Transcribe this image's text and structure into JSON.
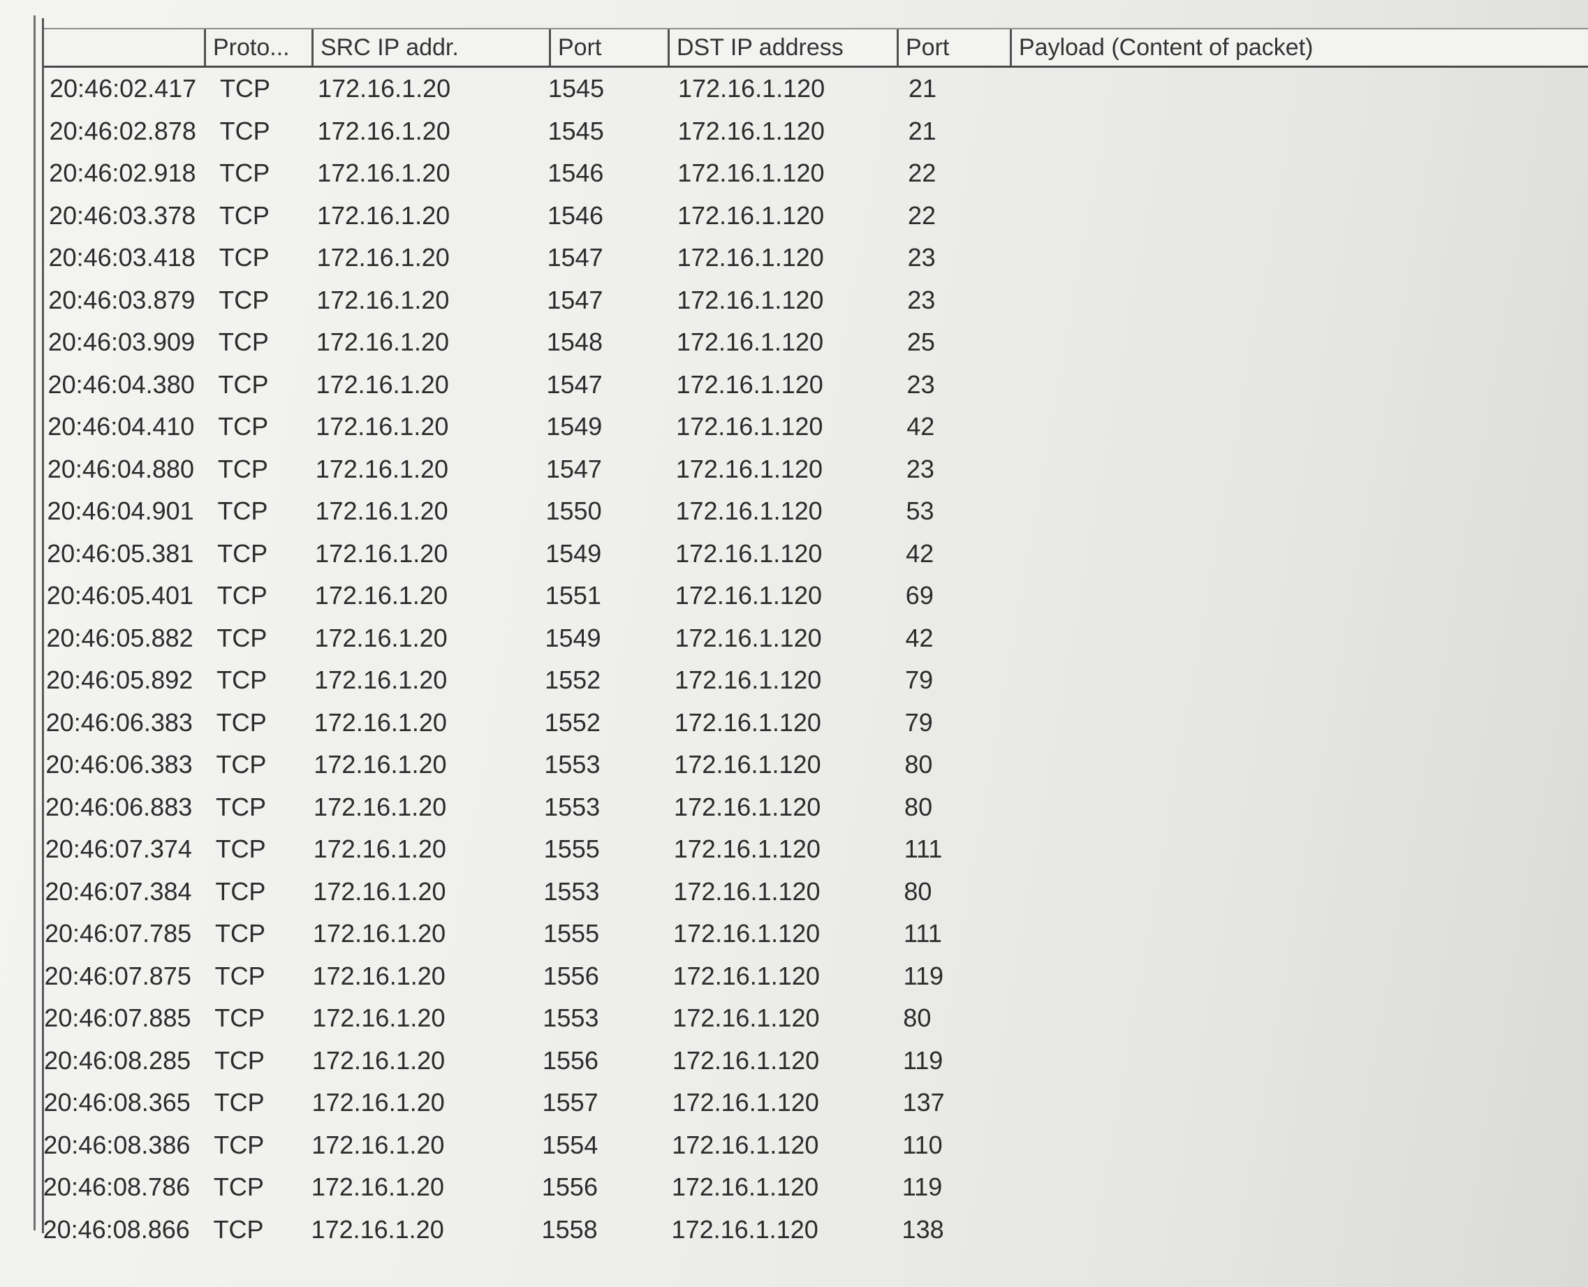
{
  "columns": [
    "",
    "Proto...",
    "SRC IP addr.",
    "Port",
    "DST IP address",
    "Port",
    "Payload (Content of packet)"
  ],
  "rows": [
    [
      "20:46:02.417",
      "TCP",
      "172.16.1.20",
      "1545",
      "172.16.1.120",
      "21",
      ""
    ],
    [
      "20:46:02.878",
      "TCP",
      "172.16.1.20",
      "1545",
      "172.16.1.120",
      "21",
      ""
    ],
    [
      "20:46:02.918",
      "TCP",
      "172.16.1.20",
      "1546",
      "172.16.1.120",
      "22",
      ""
    ],
    [
      "20:46:03.378",
      "TCP",
      "172.16.1.20",
      "1546",
      "172.16.1.120",
      "22",
      ""
    ],
    [
      "20:46:03.418",
      "TCP",
      "172.16.1.20",
      "1547",
      "172.16.1.120",
      "23",
      ""
    ],
    [
      "20:46:03.879",
      "TCP",
      "172.16.1.20",
      "1547",
      "172.16.1.120",
      "23",
      ""
    ],
    [
      "20:46:03.909",
      "TCP",
      "172.16.1.20",
      "1548",
      "172.16.1.120",
      "25",
      ""
    ],
    [
      "20:46:04.380",
      "TCP",
      "172.16.1.20",
      "1547",
      "172.16.1.120",
      "23",
      ""
    ],
    [
      "20:46:04.410",
      "TCP",
      "172.16.1.20",
      "1549",
      "172.16.1.120",
      "42",
      ""
    ],
    [
      "20:46:04.880",
      "TCP",
      "172.16.1.20",
      "1547",
      "172.16.1.120",
      "23",
      ""
    ],
    [
      "20:46:04.901",
      "TCP",
      "172.16.1.20",
      "1550",
      "172.16.1.120",
      "53",
      ""
    ],
    [
      "20:46:05.381",
      "TCP",
      "172.16.1.20",
      "1549",
      "172.16.1.120",
      "42",
      ""
    ],
    [
      "20:46:05.401",
      "TCP",
      "172.16.1.20",
      "1551",
      "172.16.1.120",
      "69",
      ""
    ],
    [
      "20:46:05.882",
      "TCP",
      "172.16.1.20",
      "1549",
      "172.16.1.120",
      "42",
      ""
    ],
    [
      "20:46:05.892",
      "TCP",
      "172.16.1.20",
      "1552",
      "172.16.1.120",
      "79",
      ""
    ],
    [
      "20:46:06.383",
      "TCP",
      "172.16.1.20",
      "1552",
      "172.16.1.120",
      "79",
      ""
    ],
    [
      "20:46:06.383",
      "TCP",
      "172.16.1.20",
      "1553",
      "172.16.1.120",
      "80",
      ""
    ],
    [
      "20:46:06.883",
      "TCP",
      "172.16.1.20",
      "1553",
      "172.16.1.120",
      "80",
      ""
    ],
    [
      "20:46:07.374",
      "TCP",
      "172.16.1.20",
      "1555",
      "172.16.1.120",
      "111",
      ""
    ],
    [
      "20:46:07.384",
      "TCP",
      "172.16.1.20",
      "1553",
      "172.16.1.120",
      "80",
      ""
    ],
    [
      "20:46:07.785",
      "TCP",
      "172.16.1.20",
      "1555",
      "172.16.1.120",
      "111",
      ""
    ],
    [
      "20:46:07.875",
      "TCP",
      "172.16.1.20",
      "1556",
      "172.16.1.120",
      "119",
      ""
    ],
    [
      "20:46:07.885",
      "TCP",
      "172.16.1.20",
      "1553",
      "172.16.1.120",
      "80",
      ""
    ],
    [
      "20:46:08.285",
      "TCP",
      "172.16.1.20",
      "1556",
      "172.16.1.120",
      "119",
      ""
    ],
    [
      "20:46:08.365",
      "TCP",
      "172.16.1.20",
      "1557",
      "172.16.1.120",
      "137",
      ""
    ],
    [
      "20:46:08.386",
      "TCP",
      "172.16.1.20",
      "1554",
      "172.16.1.120",
      "110",
      ""
    ],
    [
      "20:46:08.786",
      "TCP",
      "172.16.1.20",
      "1556",
      "172.16.1.120",
      "119",
      ""
    ],
    [
      "20:46:08.866",
      "TCP",
      "172.16.1.20",
      "1558",
      "172.16.1.120",
      "138",
      ""
    ]
  ]
}
